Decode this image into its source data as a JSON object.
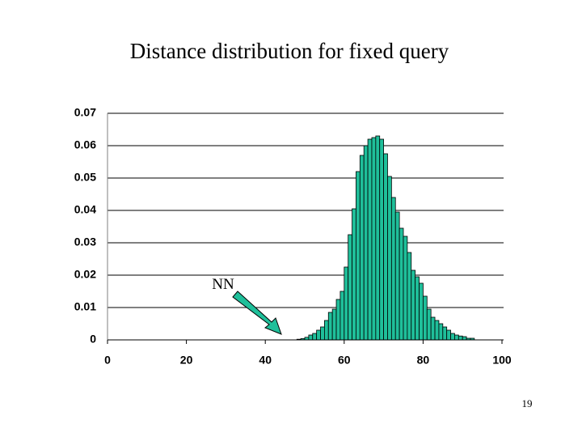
{
  "chart_data": {
    "type": "histogram",
    "title": "Distance distribution for fixed query",
    "bins": [
      48,
      49,
      50,
      51,
      52,
      53,
      54,
      55,
      56,
      57,
      58,
      59,
      60,
      61,
      62,
      63,
      64,
      65,
      66,
      67,
      68,
      69,
      70,
      71,
      72,
      73,
      74,
      75,
      76,
      77,
      78,
      79,
      80,
      81,
      82,
      83,
      84,
      85,
      86,
      87,
      88,
      89,
      90,
      91,
      92,
      93
    ],
    "values": [
      0.0002,
      0.0004,
      0.0008,
      0.0015,
      0.002,
      0.003,
      0.004,
      0.006,
      0.0085,
      0.0095,
      0.0125,
      0.015,
      0.0225,
      0.0325,
      0.0405,
      0.052,
      0.057,
      0.06,
      0.062,
      0.0625,
      0.063,
      0.062,
      0.0575,
      0.0505,
      0.044,
      0.0395,
      0.0345,
      0.032,
      0.027,
      0.0215,
      0.0195,
      0.0175,
      0.0135,
      0.0095,
      0.007,
      0.006,
      0.005,
      0.004,
      0.003,
      0.002,
      0.0015,
      0.0012,
      0.001,
      0.0005,
      0.0005
    ],
    "color": "#1fbf9a",
    "xlim": [
      0,
      100
    ],
    "xticks": [
      0,
      20,
      40,
      60,
      80,
      100
    ],
    "ylim": [
      0,
      0.07
    ],
    "yticks": [
      0,
      0.01,
      0.02,
      0.03,
      0.04,
      0.05,
      0.06,
      0.07
    ],
    "grid": true,
    "annotations": [
      {
        "text": "NN"
      }
    ]
  },
  "page_number": "19"
}
